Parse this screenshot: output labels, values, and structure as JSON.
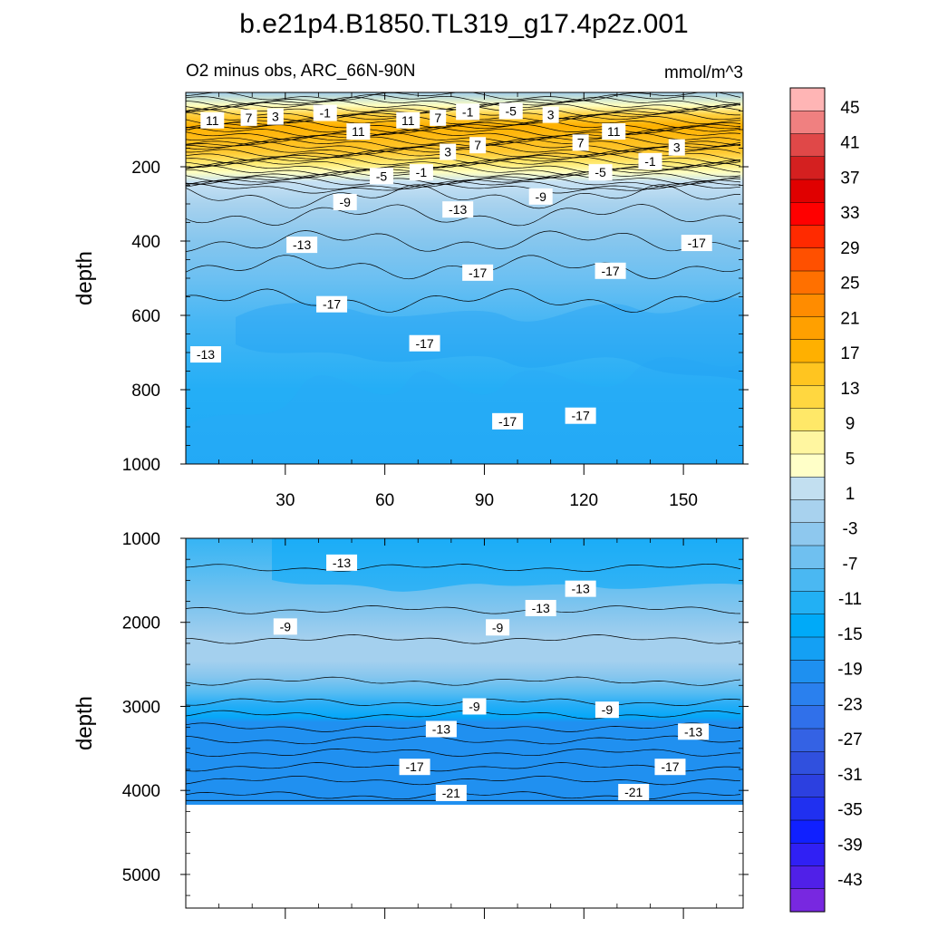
{
  "chart_data": {
    "type": "heatmap",
    "title": "b.e21p4.B1850.TL319_g17.4p2z.001",
    "subtitle_left": "O2 minus obs, ARC_66N-90N",
    "subtitle_right": "mmol/m^3",
    "x": {
      "range": [
        0,
        168
      ],
      "ticks": [
        30,
        60,
        90,
        120,
        150
      ],
      "tick_labels": [
        "30",
        "60",
        "90",
        "120",
        "150"
      ]
    },
    "panels": [
      {
        "name": "upper",
        "ylabel": "depth",
        "yrange": [
          0,
          1000
        ],
        "ticks": [
          200,
          400,
          600,
          800,
          1000
        ],
        "tick_labels": [
          "200",
          "400",
          "600",
          "800",
          "1000"
        ],
        "contour_labels": [
          {
            "x": 8,
            "y": 75,
            "v": "11"
          },
          {
            "x": 19,
            "y": 68,
            "v": "7"
          },
          {
            "x": 27,
            "y": 65,
            "v": "3"
          },
          {
            "x": 42,
            "y": 55,
            "v": "-1"
          },
          {
            "x": 52,
            "y": 105,
            "v": "11"
          },
          {
            "x": 67,
            "y": 75,
            "v": "11"
          },
          {
            "x": 76,
            "y": 68,
            "v": "7"
          },
          {
            "x": 85,
            "y": 52,
            "v": "-1"
          },
          {
            "x": 98,
            "y": 50,
            "v": "-5"
          },
          {
            "x": 110,
            "y": 60,
            "v": "3"
          },
          {
            "x": 79,
            "y": 160,
            "v": "3"
          },
          {
            "x": 88,
            "y": 142,
            "v": "7"
          },
          {
            "x": 119,
            "y": 135,
            "v": "7"
          },
          {
            "x": 129,
            "y": 105,
            "v": "11"
          },
          {
            "x": 148,
            "y": 148,
            "v": "3"
          },
          {
            "x": 140,
            "y": 185,
            "v": "-1"
          },
          {
            "x": 71,
            "y": 215,
            "v": "-1"
          },
          {
            "x": 59,
            "y": 225,
            "v": "-5"
          },
          {
            "x": 125,
            "y": 215,
            "v": "-5"
          },
          {
            "x": 48,
            "y": 295,
            "v": "-9"
          },
          {
            "x": 107,
            "y": 280,
            "v": "-9"
          },
          {
            "x": 82,
            "y": 315,
            "v": "-13"
          },
          {
            "x": 35,
            "y": 410,
            "v": "-13"
          },
          {
            "x": 154,
            "y": 405,
            "v": "-17"
          },
          {
            "x": 88,
            "y": 485,
            "v": "-17"
          },
          {
            "x": 128,
            "y": 480,
            "v": "-17"
          },
          {
            "x": 44,
            "y": 570,
            "v": "-17"
          },
          {
            "x": 72,
            "y": 675,
            "v": "-17"
          },
          {
            "x": 6,
            "y": 705,
            "v": "-13"
          },
          {
            "x": 97,
            "y": 885,
            "v": "-17"
          },
          {
            "x": 119,
            "y": 870,
            "v": "-17"
          }
        ]
      },
      {
        "name": "lower",
        "ylabel": "depth",
        "yrange": [
          1000,
          5400
        ],
        "ticks": [
          1000,
          2000,
          3000,
          4000,
          5000
        ],
        "tick_labels": [
          "1000",
          "2000",
          "3000",
          "4000",
          "5000"
        ],
        "bottom_depth": 4120,
        "contour_labels": [
          {
            "x": 47,
            "y": 1290,
            "v": "-13"
          },
          {
            "x": 119,
            "y": 1600,
            "v": "-13"
          },
          {
            "x": 107,
            "y": 1830,
            "v": "-13"
          },
          {
            "x": 30,
            "y": 2050,
            "v": "-9"
          },
          {
            "x": 94,
            "y": 2060,
            "v": "-9"
          },
          {
            "x": 87,
            "y": 3000,
            "v": "-9"
          },
          {
            "x": 127,
            "y": 3040,
            "v": "-9"
          },
          {
            "x": 77,
            "y": 3270,
            "v": "-13"
          },
          {
            "x": 153,
            "y": 3300,
            "v": "-13"
          },
          {
            "x": 69,
            "y": 3720,
            "v": "-17"
          },
          {
            "x": 146,
            "y": 3720,
            "v": "-17"
          },
          {
            "x": 80,
            "y": 4030,
            "v": "-21"
          },
          {
            "x": 135,
            "y": 4020,
            "v": "-21"
          }
        ]
      }
    ],
    "colorbar": {
      "labels": [
        "45",
        "41",
        "37",
        "33",
        "29",
        "25",
        "21",
        "17",
        "13",
        "9",
        "5",
        "1",
        "-3",
        "-7",
        "-11",
        "-15",
        "-19",
        "-23",
        "-27",
        "-31",
        "-35",
        "-39",
        "-43"
      ],
      "colors": [
        "#ffb5b5",
        "#f08080",
        "#e04848",
        "#d42020",
        "#e00000",
        "#ff0000",
        "#ff2a00",
        "#ff5000",
        "#ff7000",
        "#ff8c00",
        "#ffa000",
        "#ffb000",
        "#ffc520",
        "#ffd740",
        "#ffe868",
        "#fff6a0",
        "#ffffc8",
        "#c2dff0",
        "#a8d2ee",
        "#8ec8ee",
        "#6fc0f0",
        "#4ab8f2",
        "#22b0f4",
        "#00aaf8",
        "#14a0f4",
        "#1e90f0",
        "#2a80ee",
        "#3070ea",
        "#3462e4",
        "#3050de",
        "#2c40e0",
        "#2030f0",
        "#1020ff",
        "#3020f4",
        "#5020e8",
        "#7828e0"
      ]
    }
  }
}
